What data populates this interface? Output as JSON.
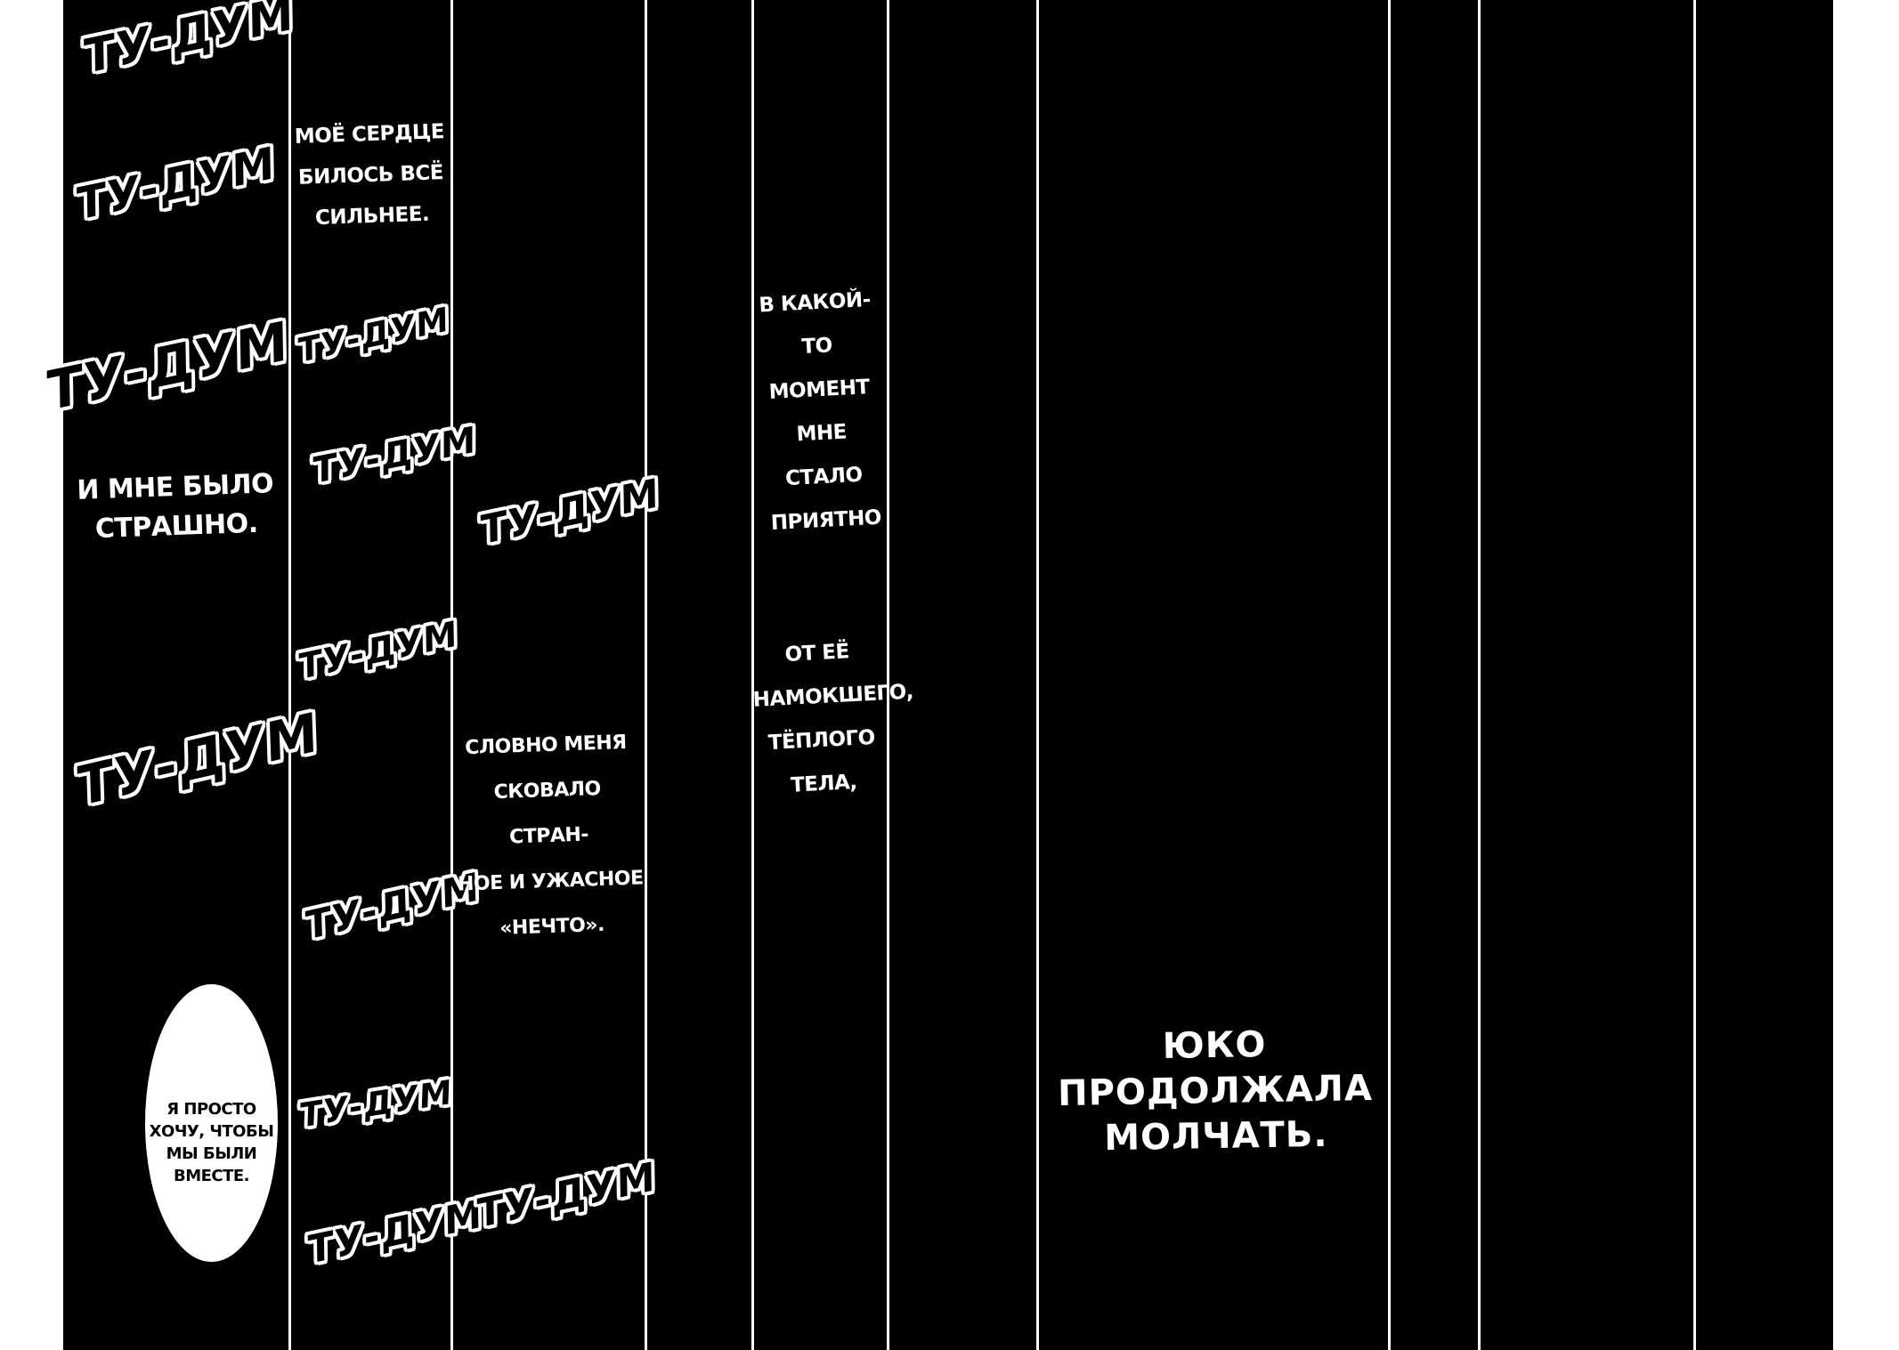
{
  "page": {
    "background_color": "#ffffff",
    "panel_color": "#000000",
    "divider_color": "#ffffff",
    "narration_text_color": "#ffffff",
    "sfx_outline_color": "#ffffff",
    "bubble_text_color": "#000000",
    "panel_count": 10
  },
  "sfx": {
    "tudum": "ТУ-ДУМ"
  },
  "narration": {
    "heart": "МОЁ СЕРДЦЕ\nБИЛОСЬ ВСЁ\nСИЛЬНЕЕ.",
    "fear": "И МНЕ БЫЛО\nСТРАШНО.",
    "strange": "СЛОВНО МЕНЯ\nСКОВАЛО СТРАН-\nНОЕ И УЖАСНОЕ\n«НЕЧТО».",
    "moment": "В КАКОЙ-\nТО МОМЕНТ\nМНЕ СТАЛО\nПРИЯТНО",
    "warm": "ОТ ЕЁ\nНАМОКШЕГО,\nТЁПЛОГО\nТЕЛА,",
    "yuko": "ЮКО\nПРОДОЛЖАЛА\nМОЛЧАТЬ."
  },
  "speech_bubble": {
    "text": "Я ПРОСТО\nХОЧУ, ЧТОБЫ\nМЫ БЫЛИ\nВМЕСТЕ."
  }
}
